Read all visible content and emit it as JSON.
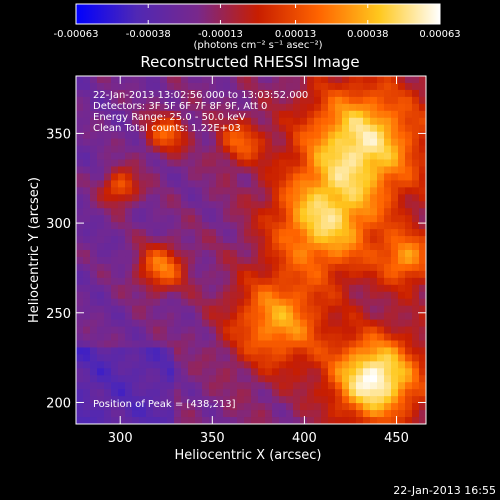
{
  "chart_data": {
    "type": "heatmap",
    "title": "Reconstructed RHESSI Image",
    "xlabel": "Heliocentric X (arcsec)",
    "ylabel": "Heliocentric Y (arcsec)",
    "xlim": [
      276,
      466
    ],
    "ylim": [
      188,
      382
    ],
    "x_ticks": [
      300,
      350,
      400,
      450
    ],
    "y_ticks": [
      200,
      250,
      300,
      350
    ],
    "colorbar": {
      "range": [
        -0.00063,
        0.00063
      ],
      "tick_values": [
        -0.00063,
        -0.00038,
        -0.00013,
        0.00013,
        0.00038,
        0.00063
      ],
      "tick_labels": [
        "-0.00063",
        "-0.00038",
        "-0.00013",
        "0.00013",
        "0.00038",
        "0.00063"
      ],
      "unit_label": "(photons cm⁻² s⁻¹ asec⁻²)",
      "colors": [
        "#0000ff",
        "#5028b4",
        "#78288c",
        "#c81e00",
        "#ff6400",
        "#ffc81e",
        "#ffffff"
      ]
    },
    "annotations": [
      "22-Jan-2013 13:02:56.000 to 13:03:52.000",
      "Detectors: 3F 5F 6F 7F 8F 9F, Att 0",
      "Energy Range: 25.0 - 50.0 keV",
      "Clean     Total counts: 1.22E+03"
    ],
    "peak_label": "Position of Peak = [438,213]",
    "peak": [
      438,
      213
    ],
    "sources": [
      {
        "x": 438,
        "y": 213,
        "amp": 1.0,
        "sigma": 16
      },
      {
        "x": 430,
        "y": 345,
        "amp": 0.85,
        "sigma": 22
      },
      {
        "x": 410,
        "y": 300,
        "amp": 0.75,
        "sigma": 20
      },
      {
        "x": 385,
        "y": 245,
        "amp": 0.65,
        "sigma": 18
      },
      {
        "x": 322,
        "y": 275,
        "amp": 0.6,
        "sigma": 9
      },
      {
        "x": 300,
        "y": 320,
        "amp": 0.55,
        "sigma": 7
      },
      {
        "x": 325,
        "y": 350,
        "amp": 0.5,
        "sigma": 8
      },
      {
        "x": 365,
        "y": 345,
        "amp": 0.45,
        "sigma": 9
      },
      {
        "x": 455,
        "y": 280,
        "amp": 0.55,
        "sigma": 10
      }
    ]
  },
  "footer": "22-Jan-2013 16:55"
}
